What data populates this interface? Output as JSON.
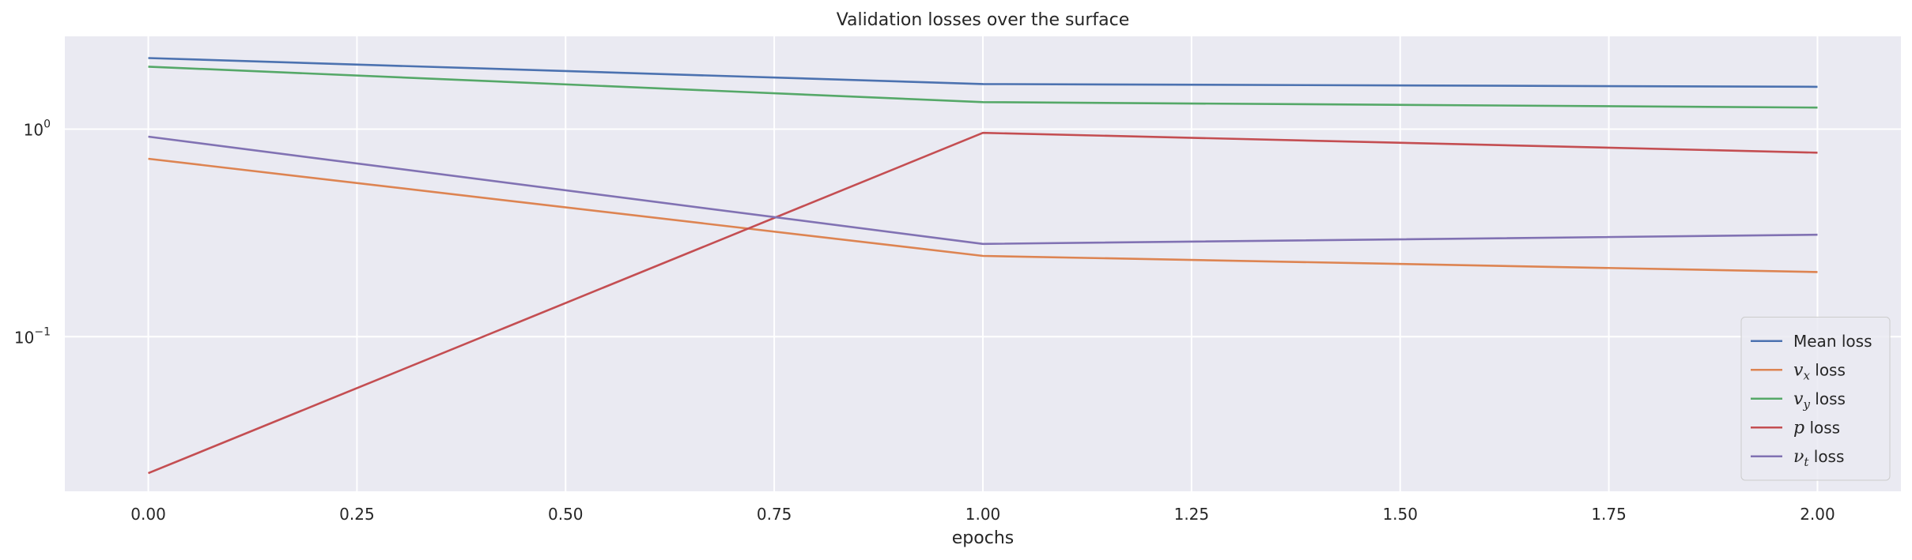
{
  "chart_data": {
    "type": "line",
    "title": "Validation losses over the surface",
    "xlabel": "epochs",
    "ylabel": "",
    "yscale": "log",
    "grid": true,
    "legend_position": "lower-right",
    "xlim": [
      -0.1,
      2.1
    ],
    "ylim": [
      0.018,
      2.8
    ],
    "x_ticks": [
      0.0,
      0.25,
      0.5,
      0.75,
      1.0,
      1.25,
      1.5,
      1.75,
      2.0
    ],
    "x_tick_labels": [
      "0.00",
      "0.25",
      "0.50",
      "0.75",
      "1.00",
      "1.25",
      "1.50",
      "1.75",
      "2.00"
    ],
    "y_ticks": [
      0.1,
      1
    ],
    "y_tick_labels": [
      {
        "base": "10",
        "exp": "−1"
      },
      {
        "base": "10",
        "exp": "0"
      }
    ],
    "x": [
      0,
      1,
      2
    ],
    "series": [
      {
        "name": "Mean loss",
        "legend_math": "",
        "legend_sub": "",
        "legend_rest": "Mean loss",
        "color": "#4c72b0",
        "values": [
          2.2,
          1.65,
          1.6
        ]
      },
      {
        "name": "v_x loss",
        "legend_math": "v",
        "legend_sub": "x",
        "legend_rest": " loss",
        "color": "#dd8452",
        "values": [
          0.72,
          0.245,
          0.205
        ]
      },
      {
        "name": "v_y loss",
        "legend_math": "v",
        "legend_sub": "y",
        "legend_rest": " loss",
        "color": "#55a868",
        "values": [
          2.0,
          1.35,
          1.27
        ]
      },
      {
        "name": "p loss",
        "legend_math": "p",
        "legend_sub": "",
        "legend_rest": " loss",
        "color": "#c44e52",
        "values": [
          0.022,
          0.96,
          0.77
        ]
      },
      {
        "name": "ν_t loss",
        "legend_math": "ν",
        "legend_sub": "t",
        "legend_rest": " loss",
        "color": "#8172b3",
        "values": [
          0.92,
          0.28,
          0.31
        ]
      }
    ]
  }
}
